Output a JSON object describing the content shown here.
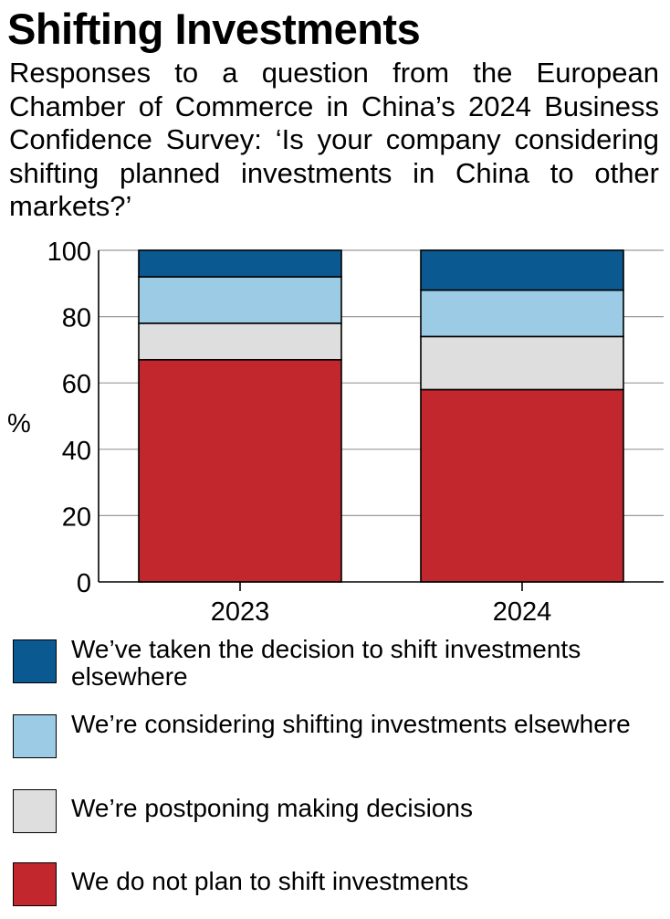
{
  "title": "Shifting Investments",
  "subtitle": "Responses to a question from the  European Chamber of Commerce in China’s 2024 Business Confidence Survey: ‘Is your company considering shifting planned investments in China to other markets?’",
  "colors": {
    "decided": "#0a5a91",
    "considering": "#9bcbe5",
    "postponing": "#dedede",
    "no_plan": "#c1272d",
    "gridline": "#9a9a9a"
  },
  "legend": [
    {
      "key": "decided",
      "label": "We’ve taken the decision to shift investments elsewhere"
    },
    {
      "key": "considering",
      "label": "We’re considering shifting investments elsewhere"
    },
    {
      "key": "postponing",
      "label": "We’re postponing making decisions"
    },
    {
      "key": "no_plan",
      "label": "We do not plan to shift investments"
    }
  ],
  "chart_data": {
    "type": "bar",
    "stacked": true,
    "title": "Shifting Investments",
    "ylabel": "%",
    "xlabel": "",
    "ylim": [
      0,
      100
    ],
    "yticks": [
      0,
      20,
      40,
      60,
      80,
      100
    ],
    "grid": true,
    "categories": [
      "2023",
      "2024"
    ],
    "series": [
      {
        "name": "We do not plan to shift investments",
        "key": "no_plan",
        "values": [
          67,
          58
        ]
      },
      {
        "name": "We’re postponing making decisions",
        "key": "postponing",
        "values": [
          11,
          16
        ]
      },
      {
        "name": "We’re considering shifting investments elsewhere",
        "key": "considering",
        "values": [
          14,
          14
        ]
      },
      {
        "name": "We’ve taken the decision to shift investments elsewhere",
        "key": "decided",
        "values": [
          8,
          12
        ]
      }
    ]
  }
}
